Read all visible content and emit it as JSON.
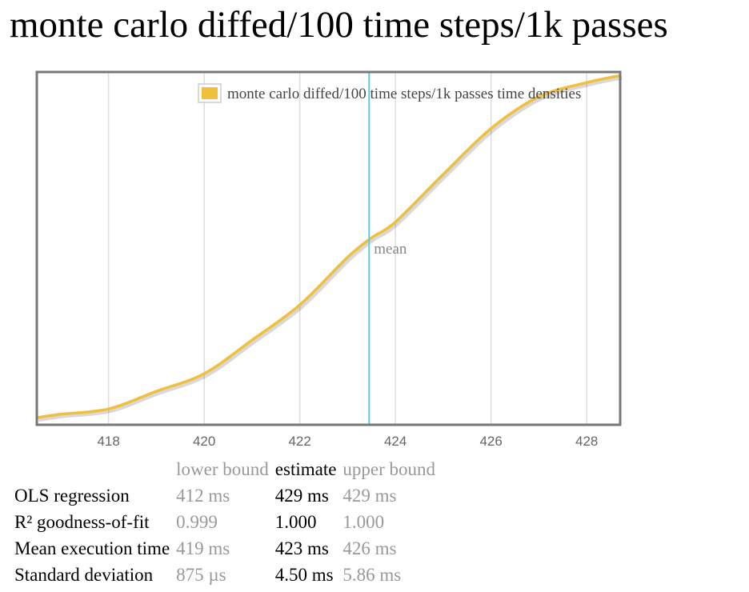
{
  "title": "monte carlo diffed/100 time steps/1k passes",
  "colors": {
    "density": "#f0c03c",
    "mean_line": "#5bc8e8",
    "border": "#777777",
    "grid": "#dddddd"
  },
  "chart_data": {
    "type": "line",
    "title": "",
    "xlabel": "",
    "ylabel": "",
    "xlim": [
      416.5,
      428.7
    ],
    "x_ticks": [
      "418",
      "420",
      "422",
      "424",
      "426",
      "428"
    ],
    "legend": {
      "label": "monte carlo diffed/100 time steps/1k passes time densities",
      "position": "top-right"
    },
    "grid": true,
    "series": [
      {
        "name": "monte carlo diffed/100 time steps/1k passes time densities",
        "x": [
          416.5,
          417,
          418,
          419,
          420,
          421,
          422,
          423,
          423.5,
          424,
          425,
          426,
          427,
          428,
          428.7
        ],
        "y": [
          0.02,
          0.03,
          0.045,
          0.095,
          0.145,
          0.24,
          0.34,
          0.475,
          0.53,
          0.575,
          0.71,
          0.84,
          0.93,
          0.97,
          0.99
        ]
      }
    ],
    "mean": {
      "x": 423.45,
      "label": "mean"
    }
  },
  "stats": {
    "headers": {
      "lower": "lower bound",
      "estimate": "estimate",
      "upper": "upper bound"
    },
    "rows": [
      {
        "label": "OLS regression",
        "lower": "412 ms",
        "estimate": "429 ms",
        "upper": "429 ms"
      },
      {
        "label": "R² goodness-of-fit",
        "lower": "0.999",
        "estimate": "1.000",
        "upper": "1.000"
      },
      {
        "label": "Mean execution time",
        "lower": "419 ms",
        "estimate": "423 ms",
        "upper": "426 ms"
      },
      {
        "label": "Standard deviation",
        "lower": "875 µs",
        "estimate": "4.50 ms",
        "upper": "5.86 ms"
      }
    ]
  }
}
